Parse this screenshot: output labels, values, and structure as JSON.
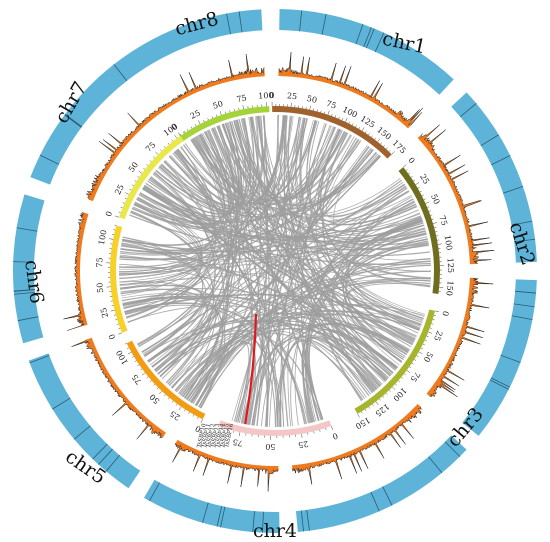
{
  "figure": {
    "chromosomes": [
      {
        "name": "chr1",
        "size": 175,
        "inner_color": "#A0622D"
      },
      {
        "name": "chr2",
        "size": 158,
        "inner_color": "#6E6E1E"
      },
      {
        "name": "chr3",
        "size": 150,
        "inner_color": "#A6B52C"
      },
      {
        "name": "chr4",
        "size": 93,
        "inner_color": "#F5C6C6"
      },
      {
        "name": "chr5",
        "size": 110,
        "inner_color": "#F39C12"
      },
      {
        "name": "chr6",
        "size": 115,
        "inner_color": "#F7D028"
      },
      {
        "name": "chr7",
        "size": 110,
        "inner_color": "#E8E84A"
      },
      {
        "name": "chr8",
        "size": 103,
        "inner_color": "#A4D43A"
      }
    ],
    "colors": {
      "outer_ring": "#5EB4D8",
      "outer_ring_dark": "#2A5D77",
      "density_fill": "#F07A1E",
      "density_line": "#1a1a1a",
      "link": "#9E9E9E",
      "highlight_link": "#E0161B"
    },
    "gene_labels": [
      "TsSBP10",
      "TsSBP11",
      "TsSBP12",
      "TsSBP13",
      "TsSBP14",
      "TsSBP15",
      "TsSBP16"
    ]
  }
}
